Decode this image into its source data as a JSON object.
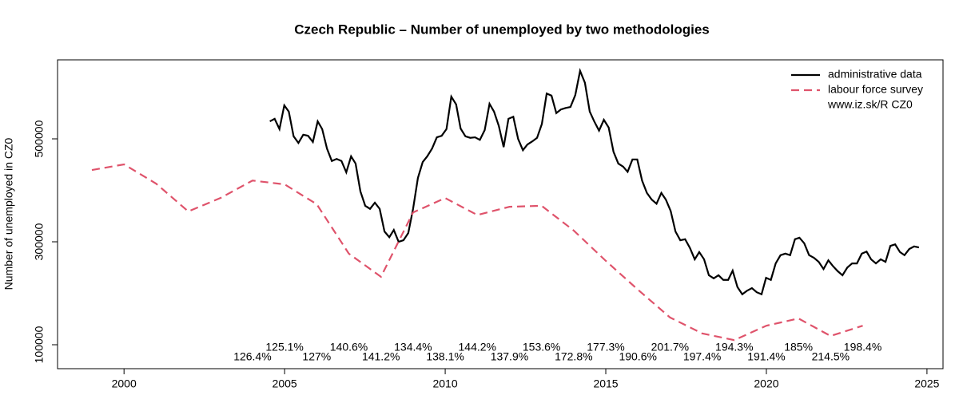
{
  "chart_data": {
    "type": "line",
    "title": "Czech Republic – Number of unemployed  by two methodologies",
    "y_label": "Number of unemployed  in CZ0",
    "xlim": [
      1997.93,
      2025.5
    ],
    "ylim": [
      53500,
      653500
    ],
    "xticks": [
      2000,
      2005,
      2010,
      2015,
      2020,
      2025
    ],
    "yticks": [
      100000,
      300000,
      500000
    ],
    "legend_position": "topright",
    "legend_note": "www.iz.sk/R CZ0",
    "series": [
      {
        "name": "administrative data",
        "color": "#000000",
        "line_style": "solid",
        "x": [
          2004.54,
          2004.69,
          2004.84,
          2004.99,
          2005.13,
          2005.28,
          2005.43,
          2005.58,
          2005.73,
          2005.88,
          2006.03,
          2006.17,
          2006.32,
          2006.47,
          2006.62,
          2006.77,
          2006.92,
          2007.07,
          2007.21,
          2007.36,
          2007.51,
          2007.66,
          2007.81,
          2007.96,
          2008.11,
          2008.26,
          2008.4,
          2008.55,
          2008.7,
          2008.85,
          2009.0,
          2009.15,
          2009.3,
          2009.44,
          2009.59,
          2009.74,
          2009.89,
          2010.04,
          2010.19,
          2010.34,
          2010.48,
          2010.63,
          2010.78,
          2010.93,
          2011.08,
          2011.23,
          2011.38,
          2011.52,
          2011.67,
          2011.82,
          2011.97,
          2012.12,
          2012.27,
          2012.42,
          2012.56,
          2012.71,
          2012.86,
          2013.01,
          2013.16,
          2013.31,
          2013.46,
          2013.6,
          2013.75,
          2013.9,
          2014.05,
          2014.2,
          2014.35,
          2014.5,
          2014.64,
          2014.79,
          2014.94,
          2015.09,
          2015.24,
          2015.39,
          2015.54,
          2015.68,
          2015.83,
          2015.98,
          2016.13,
          2016.28,
          2016.43,
          2016.58,
          2016.73,
          2016.87,
          2017.02,
          2017.17,
          2017.32,
          2017.47,
          2017.62,
          2017.77,
          2017.91,
          2018.06,
          2018.21,
          2018.36,
          2018.51,
          2018.66,
          2018.81,
          2018.95,
          2019.1,
          2019.25,
          2019.4,
          2019.55,
          2019.7,
          2019.85,
          2019.99,
          2020.14,
          2020.29,
          2020.44,
          2020.59,
          2020.74,
          2020.89,
          2021.03,
          2021.18,
          2021.33,
          2021.48,
          2021.63,
          2021.78,
          2021.93,
          2022.07,
          2022.22,
          2022.37,
          2022.52,
          2022.67,
          2022.82,
          2022.97,
          2023.12,
          2023.26,
          2023.41,
          2023.56,
          2023.71,
          2023.86,
          2024.01,
          2024.16,
          2024.3,
          2024.45,
          2024.6,
          2024.75
        ],
        "values": [
          534000,
          539000,
          519000,
          565000,
          553000,
          505000,
          492000,
          508000,
          506000,
          494000,
          534000,
          519000,
          481000,
          457000,
          461000,
          457000,
          435000,
          466000,
          452000,
          398000,
          370000,
          364000,
          376000,
          364000,
          320000,
          309000,
          323000,
          300000,
          303000,
          317000,
          364000,
          424000,
          455000,
          466000,
          481000,
          503000,
          506000,
          519000,
          582000,
          567000,
          520000,
          505000,
          502000,
          503000,
          498000,
          517000,
          568000,
          553000,
          525000,
          484000,
          539000,
          543000,
          500000,
          478000,
          489000,
          495000,
          502000,
          529000,
          588000,
          584000,
          550000,
          557000,
          560000,
          562000,
          585000,
          632000,
          609000,
          553000,
          534000,
          516000,
          537000,
          522000,
          475000,
          452000,
          446000,
          436000,
          460000,
          460000,
          419000,
          395000,
          382000,
          374000,
          395000,
          382000,
          360000,
          320000,
          303000,
          305000,
          288000,
          266000,
          280000,
          266000,
          235000,
          229000,
          235000,
          226000,
          226000,
          244000,
          212000,
          198000,
          205000,
          210000,
          202000,
          198000,
          230000,
          226000,
          258000,
          274000,
          277000,
          274000,
          305000,
          308000,
          297000,
          274000,
          269000,
          261000,
          247000,
          264000,
          253000,
          243000,
          235000,
          250000,
          258000,
          258000,
          277000,
          281000,
          266000,
          258000,
          266000,
          261000,
          292000,
          295000,
          280000,
          274000,
          286000,
          291000,
          289000
        ]
      },
      {
        "name": "labour force survey",
        "color": "#df536b",
        "line_style": "dashed",
        "x": [
          1999,
          2000,
          2001,
          2002,
          2003,
          2004,
          2005,
          2006,
          2007,
          2008,
          2009,
          2010,
          2011,
          2012,
          2013,
          2014,
          2015,
          2016,
          2017,
          2018,
          2019,
          2020,
          2021,
          2022,
          2023
        ],
        "values": [
          439500,
          450400,
          413000,
          359000,
          385000,
          419000,
          411600,
          373000,
          277000,
          232000,
          357000,
          385000,
          352000,
          368000,
          370000,
          322000,
          263000,
          207000,
          153000,
          122000,
          109000,
          137000,
          151000,
          117000,
          137000
        ]
      }
    ],
    "ratio_labels": {
      "x": [
        2004,
        2005,
        2006,
        2007,
        2008,
        2009,
        2010,
        2011,
        2012,
        2013,
        2014,
        2015,
        2016,
        2017,
        2018,
        2019,
        2020,
        2021,
        2022,
        2023
      ],
      "values": [
        126.4,
        125.1,
        127,
        140.6,
        141.2,
        134.4,
        138.1,
        144.2,
        137.9,
        153.6,
        172.8,
        177.3,
        190.6,
        201.7,
        197.4,
        194.3,
        191.4,
        185,
        214.5,
        198.4
      ],
      "value_labels": [
        "126.4%",
        "125.1%",
        "127%",
        "140.6%",
        "141.2%",
        "134.4%",
        "138.1%",
        "144.2%",
        "137.9%",
        "153.6%",
        "172.8%",
        "177.3%",
        "190.6%",
        "201.7%",
        "197.4%",
        "194.3%",
        "191.4%",
        "185%",
        "214.5%",
        "198.4%"
      ]
    }
  }
}
